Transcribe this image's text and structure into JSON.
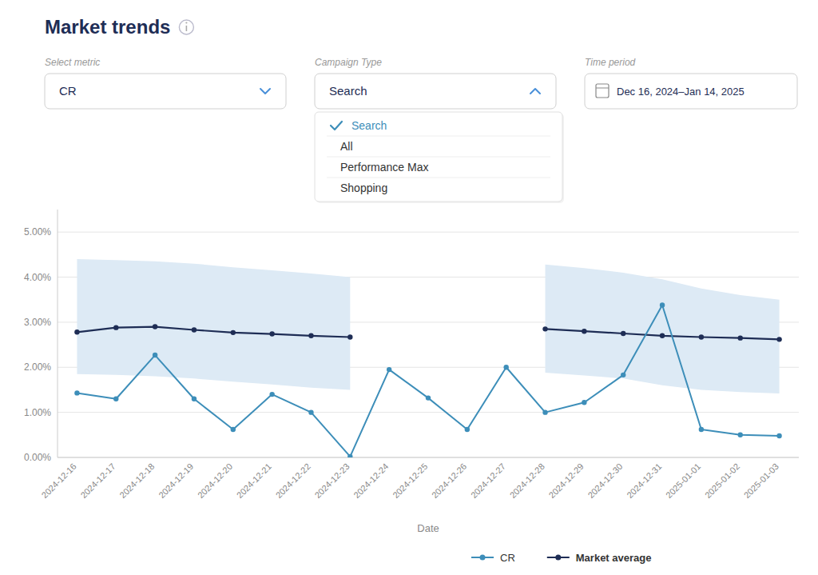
{
  "chart_data": {
    "type": "line",
    "title": "Market trends",
    "annotations": [
      "Select metric",
      "Campaign Type",
      "Time period",
      "CR",
      "Search",
      "Dec 16, 2024–Jan 14, 2025",
      "Search",
      "All",
      "Performance Max",
      "Shopping"
    ],
    "x_label": "Date",
    "categories": [
      "2024-12-16",
      "2024-12-17",
      "2024-12-18",
      "2024-12-19",
      "2024-12-20",
      "2024-12-21",
      "2024-12-22",
      "2024-12-23",
      "2024-12-24",
      "2024-12-25",
      "2024-12-26",
      "2024-12-27",
      "2024-12-28",
      "2024-12-29",
      "2024-12-30",
      "2024-12-31",
      "2025-01-01",
      "2025-01-02",
      "2025-01-03"
    ],
    "series": [
      {
        "name": "CR",
        "color": "#3d8eb9",
        "marker": "circle",
        "values": [
          1.43,
          1.3,
          2.27,
          1.3,
          0.62,
          1.4,
          1.0,
          0.02,
          1.95,
          1.32,
          0.62,
          2.0,
          1.0,
          1.22,
          1.83,
          3.38,
          0.62,
          0.5,
          0.48
        ]
      },
      {
        "name": "Market average",
        "color": "#1e2d55",
        "marker": "circle",
        "values": [
          2.78,
          2.88,
          2.9,
          2.83,
          2.77,
          2.74,
          2.7,
          2.67,
          null,
          null,
          null,
          null,
          2.85,
          2.8,
          2.75,
          2.7,
          2.67,
          2.65,
          2.62
        ]
      }
    ],
    "band": {
      "color": "#ddeaf5",
      "upper": [
        4.4,
        4.38,
        4.35,
        4.3,
        4.22,
        4.15,
        4.08,
        4.0,
        null,
        null,
        null,
        null,
        4.28,
        4.2,
        4.1,
        3.95,
        3.75,
        3.6,
        3.5
      ],
      "lower": [
        1.85,
        1.83,
        1.8,
        1.75,
        1.68,
        1.62,
        1.55,
        1.5,
        null,
        null,
        null,
        null,
        1.88,
        1.82,
        1.75,
        1.6,
        1.5,
        1.45,
        1.42
      ]
    },
    "ylim": [
      0,
      5.5
    ],
    "yticks": [
      {
        "value": 0.0,
        "label": "0.00%"
      },
      {
        "value": 1.0,
        "label": "1.00%"
      },
      {
        "value": 2.0,
        "label": "2.00%"
      },
      {
        "value": 3.0,
        "label": "3.00%"
      },
      {
        "value": 4.0,
        "label": "4.00%"
      },
      {
        "value": 5.0,
        "label": "5.00%"
      }
    ],
    "grid": true,
    "legend": "bottom"
  }
}
